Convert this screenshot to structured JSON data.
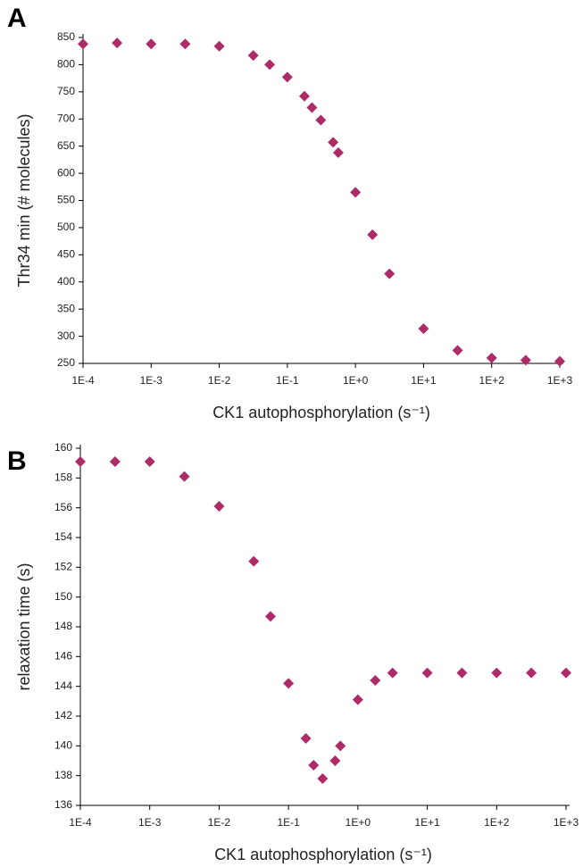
{
  "chart_data": [
    {
      "type": "scatter",
      "panel_label": "A",
      "xlabel": "CK1 autophosphorylation  (s⁻¹)",
      "ylabel": "Thr34 min (# molecules)",
      "xscale": "log",
      "color": "#ad2c68",
      "marker": "diamond",
      "x": [
        0.0001,
        0.000316,
        0.001,
        0.00316,
        0.01,
        0.0316,
        0.055,
        0.1,
        0.178,
        0.23,
        0.31,
        0.47,
        0.56,
        1,
        1.78,
        3.16,
        10,
        31.6,
        100,
        316,
        1000
      ],
      "values": [
        838,
        840,
        838,
        838,
        834,
        817,
        800,
        777,
        742,
        721,
        698,
        657,
        638,
        565,
        487,
        415,
        314,
        274,
        260,
        256,
        254
      ],
      "xlim": [
        0.0001,
        1000
      ],
      "xticks": [
        {
          "value": 0.0001,
          "label": "1E-4"
        },
        {
          "value": 0.001,
          "label": "1E-3"
        },
        {
          "value": 0.01,
          "label": "1E-2"
        },
        {
          "value": 0.1,
          "label": "1E-1"
        },
        {
          "value": 1,
          "label": "1E+0"
        },
        {
          "value": 10,
          "label": "1E+1"
        },
        {
          "value": 100,
          "label": "1E+2"
        },
        {
          "value": 1000,
          "label": "1E+3"
        }
      ],
      "ylim": [
        250,
        850
      ],
      "yticks": [
        250,
        300,
        350,
        400,
        450,
        500,
        550,
        600,
        650,
        700,
        750,
        800,
        850
      ]
    },
    {
      "type": "scatter",
      "panel_label": "B",
      "xlabel": "CK1 autophosphorylation  (s⁻¹)",
      "ylabel": "relaxation time (s)",
      "xscale": "log",
      "color": "#ad2c68",
      "marker": "diamond",
      "x": [
        0.0001,
        0.000316,
        0.001,
        0.00316,
        0.01,
        0.0316,
        0.055,
        0.1,
        0.178,
        0.23,
        0.31,
        0.47,
        0.56,
        1,
        1.78,
        3.16,
        10,
        31.6,
        100,
        316,
        1000
      ],
      "values": [
        159.1,
        159.1,
        159.1,
        158.1,
        156.1,
        152.4,
        148.7,
        144.2,
        140.5,
        138.7,
        137.8,
        139.0,
        140.0,
        143.1,
        144.4,
        144.9,
        144.9,
        144.9,
        144.9,
        144.9,
        144.9
      ],
      "xlim": [
        0.0001,
        1000
      ],
      "xticks": [
        {
          "value": 0.0001,
          "label": "1E-4"
        },
        {
          "value": 0.001,
          "label": "1E-3"
        },
        {
          "value": 0.01,
          "label": "1E-2"
        },
        {
          "value": 0.1,
          "label": "1E-1"
        },
        {
          "value": 1,
          "label": "1E+0"
        },
        {
          "value": 10,
          "label": "1E+1"
        },
        {
          "value": 100,
          "label": "1E+2"
        },
        {
          "value": 1000,
          "label": "1E+3"
        }
      ],
      "ylim": [
        136,
        160
      ],
      "yticks": [
        136,
        138,
        140,
        142,
        144,
        146,
        148,
        150,
        152,
        154,
        156,
        158,
        160
      ]
    }
  ]
}
